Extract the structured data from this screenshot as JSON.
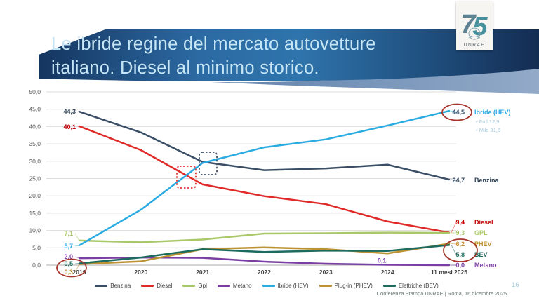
{
  "slide": {
    "title_line1": "Le ibride regine del mercato autovetture",
    "title_line2": "italiano. Diesel al minimo storico.",
    "logo": {
      "number": "75",
      "name": "UNRAE"
    },
    "footer_text": "Conferenza Stampa UNRAE | Roma, 16 dicembre 2025",
    "page_number": "16"
  },
  "chart_data": {
    "type": "line",
    "title": "",
    "xlabel": "",
    "ylabel": "",
    "x_categories": [
      "2019",
      "2020",
      "2021",
      "2022",
      "2023",
      "2024",
      "11 mesi 2025"
    ],
    "ylim": [
      0,
      50
    ],
    "y_tick_labels": [
      "0,0",
      "5,0",
      "10,0",
      "15,0",
      "20,0",
      "25,0",
      "30,0",
      "35,0",
      "40,0",
      "45,0",
      "50,0"
    ],
    "grid": true,
    "legend_position": "bottom",
    "series": [
      {
        "key": "benzina",
        "legend_label": "Benzina",
        "side_label": "Benzina",
        "color": "#3a4e66",
        "label_color": "#2e4257",
        "values": [
          44.3,
          38.3,
          29.8,
          27.4,
          27.9,
          29.0,
          24.7
        ],
        "start_label": "44,3",
        "end_label": "24,7"
      },
      {
        "key": "diesel",
        "legend_label": "Diesel",
        "side_label": "Diesel",
        "color": "#e02a28",
        "label_color": "#c00000",
        "values": [
          40.1,
          33.2,
          23.3,
          19.9,
          17.6,
          12.6,
          9.4
        ],
        "start_label": "40,1",
        "end_label": "9,4"
      },
      {
        "key": "gpl",
        "legend_label": "Gpl",
        "side_label": "GPL",
        "color": "#a9c86a",
        "label_color": "#a9c86a",
        "values": [
          7.1,
          6.6,
          7.4,
          9.1,
          9.2,
          9.4,
          9.3
        ],
        "start_label": "7,1",
        "end_label": "9,3"
      },
      {
        "key": "metano",
        "legend_label": "Metano",
        "side_label": "Metano",
        "color": "#7b3fa3",
        "label_color": "#7b3fa3",
        "values": [
          2.0,
          2.2,
          2.1,
          1.0,
          0.4,
          0.1,
          0.0
        ],
        "start_label": "2,0",
        "end_label": "0,0",
        "mid_label": {
          "text": "0,1",
          "index": 5
        }
      },
      {
        "key": "ibride",
        "legend_label": "Ibride (HEV)",
        "side_label": "Ibride (HEV)",
        "color": "#2aabe2",
        "label_color": "#2aabe2",
        "end_label_color": "#33506b",
        "values": [
          5.7,
          16.0,
          29.5,
          34.0,
          36.3,
          40.3,
          44.5
        ],
        "start_label": "5,7",
        "end_label": "44,5",
        "sub_labels": [
          "Full  12,9",
          "Mild  31,6"
        ]
      },
      {
        "key": "phev",
        "legend_label": "Plug-in (PHEV)",
        "side_label": "PHEV",
        "color": "#bd9232",
        "label_color": "#bd9232",
        "values": [
          0.3,
          1.1,
          4.6,
          5.1,
          4.6,
          3.4,
          6.2
        ],
        "start_label": "0,3",
        "end_label": "6,2"
      },
      {
        "key": "bev",
        "legend_label": "Elettriche (BEV)",
        "side_label": "BEV",
        "color": "#1d6b5e",
        "label_color": "#1d6b5e",
        "values": [
          0.5,
          2.2,
          4.6,
          3.8,
          4.2,
          4.1,
          5.8
        ],
        "start_label": "0,5",
        "end_label": "5,8"
      }
    ],
    "highlights": [
      {
        "id": "hev_end_circle",
        "type": "ellipse",
        "note": "44,5 HEV share circled"
      },
      {
        "id": "phev_bev_end_circle",
        "type": "ellipse",
        "note": "6,2 PHEV and 5,8 BEV circled"
      },
      {
        "id": "bev_phev_start_circle",
        "type": "ellipse",
        "note": "0,5 BEV and 0,3 PHEV 2019 circled"
      },
      {
        "id": "diesel_cross_box",
        "type": "dotted-box",
        "note": "HEV overtakes Diesel"
      },
      {
        "id": "benzina_cross_box",
        "type": "dotted-box",
        "note": "HEV overtakes Benzina"
      }
    ]
  }
}
